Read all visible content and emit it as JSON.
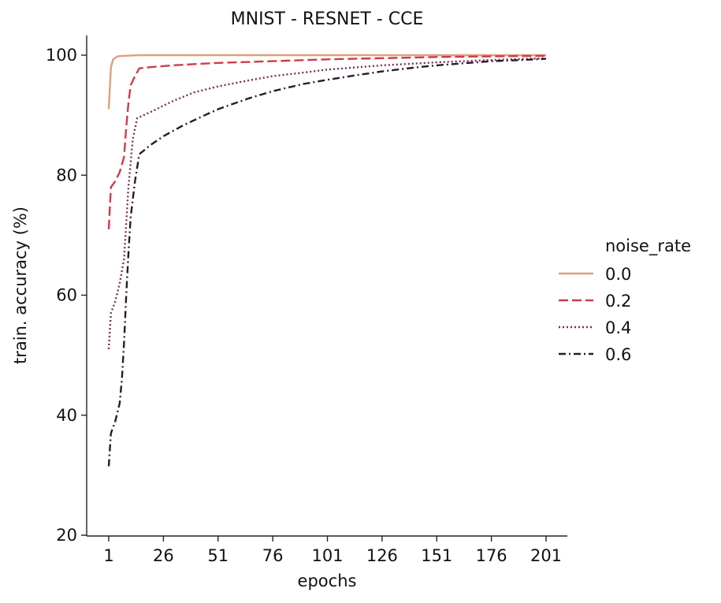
{
  "chart_data": {
    "type": "line",
    "title": "MNIST - RESNET - CCE",
    "xlabel": "epochs",
    "ylabel": "train. accuracy (%)",
    "xlim": [
      1,
      201
    ],
    "ylim": [
      20,
      100
    ],
    "xticks": [
      1,
      26,
      51,
      76,
      101,
      126,
      151,
      176,
      201
    ],
    "yticks": [
      20,
      40,
      60,
      80,
      100
    ],
    "grid": false,
    "legend": {
      "title": "noise_rate",
      "placement": "right"
    },
    "series": [
      {
        "name": "0.0",
        "color": "#e0a07a",
        "dash": "solid",
        "points": [
          [
            1,
            91.0
          ],
          [
            2,
            98.0
          ],
          [
            3,
            99.3
          ],
          [
            5,
            99.8
          ],
          [
            8,
            99.9
          ],
          [
            15,
            100.0
          ],
          [
            50,
            100.0
          ],
          [
            100,
            100.0
          ],
          [
            150,
            100.0
          ],
          [
            201,
            100.0
          ]
        ]
      },
      {
        "name": "0.2",
        "color": "#d03a4c",
        "dash": "dashed",
        "points": [
          [
            1,
            71.0
          ],
          [
            2,
            78.0
          ],
          [
            4,
            79.0
          ],
          [
            6,
            80.5
          ],
          [
            8,
            83.0
          ],
          [
            9,
            88.0
          ],
          [
            10,
            92.0
          ],
          [
            11,
            95.0
          ],
          [
            13,
            96.5
          ],
          [
            15,
            97.8
          ],
          [
            20,
            98.0
          ],
          [
            30,
            98.3
          ],
          [
            50,
            98.7
          ],
          [
            76,
            99.0
          ],
          [
            101,
            99.3
          ],
          [
            126,
            99.5
          ],
          [
            151,
            99.7
          ],
          [
            176,
            99.8
          ],
          [
            201,
            99.9
          ]
        ]
      },
      {
        "name": "0.4",
        "color": "#7a2e58",
        "dash": "dotted",
        "points": [
          [
            1,
            51.0
          ],
          [
            2,
            57.0
          ],
          [
            4,
            59.0
          ],
          [
            6,
            62.0
          ],
          [
            8,
            66.0
          ],
          [
            9,
            72.0
          ],
          [
            10,
            78.0
          ],
          [
            12,
            86.0
          ],
          [
            14,
            89.5
          ],
          [
            20,
            90.5
          ],
          [
            30,
            92.3
          ],
          [
            40,
            93.8
          ],
          [
            51,
            94.8
          ],
          [
            65,
            95.8
          ],
          [
            76,
            96.5
          ],
          [
            90,
            97.1
          ],
          [
            101,
            97.6
          ],
          [
            126,
            98.3
          ],
          [
            151,
            98.8
          ],
          [
            176,
            99.2
          ],
          [
            201,
            99.5
          ]
        ]
      },
      {
        "name": "0.6",
        "color": "#2b1a2e",
        "dash": "dashdot",
        "points": [
          [
            1,
            31.5
          ],
          [
            2,
            37.0
          ],
          [
            4,
            39.0
          ],
          [
            6,
            42.0
          ],
          [
            7,
            46.0
          ],
          [
            8,
            52.0
          ],
          [
            9,
            60.0
          ],
          [
            10,
            67.0
          ],
          [
            11,
            73.0
          ],
          [
            13,
            79.0
          ],
          [
            15,
            83.5
          ],
          [
            20,
            85.0
          ],
          [
            26,
            86.5
          ],
          [
            35,
            88.3
          ],
          [
            45,
            90.0
          ],
          [
            51,
            91.0
          ],
          [
            65,
            92.8
          ],
          [
            76,
            94.0
          ],
          [
            90,
            95.2
          ],
          [
            101,
            95.9
          ],
          [
            115,
            96.7
          ],
          [
            126,
            97.3
          ],
          [
            140,
            97.9
          ],
          [
            151,
            98.3
          ],
          [
            165,
            98.7
          ],
          [
            176,
            99.0
          ],
          [
            190,
            99.2
          ],
          [
            201,
            99.4
          ]
        ]
      }
    ]
  }
}
